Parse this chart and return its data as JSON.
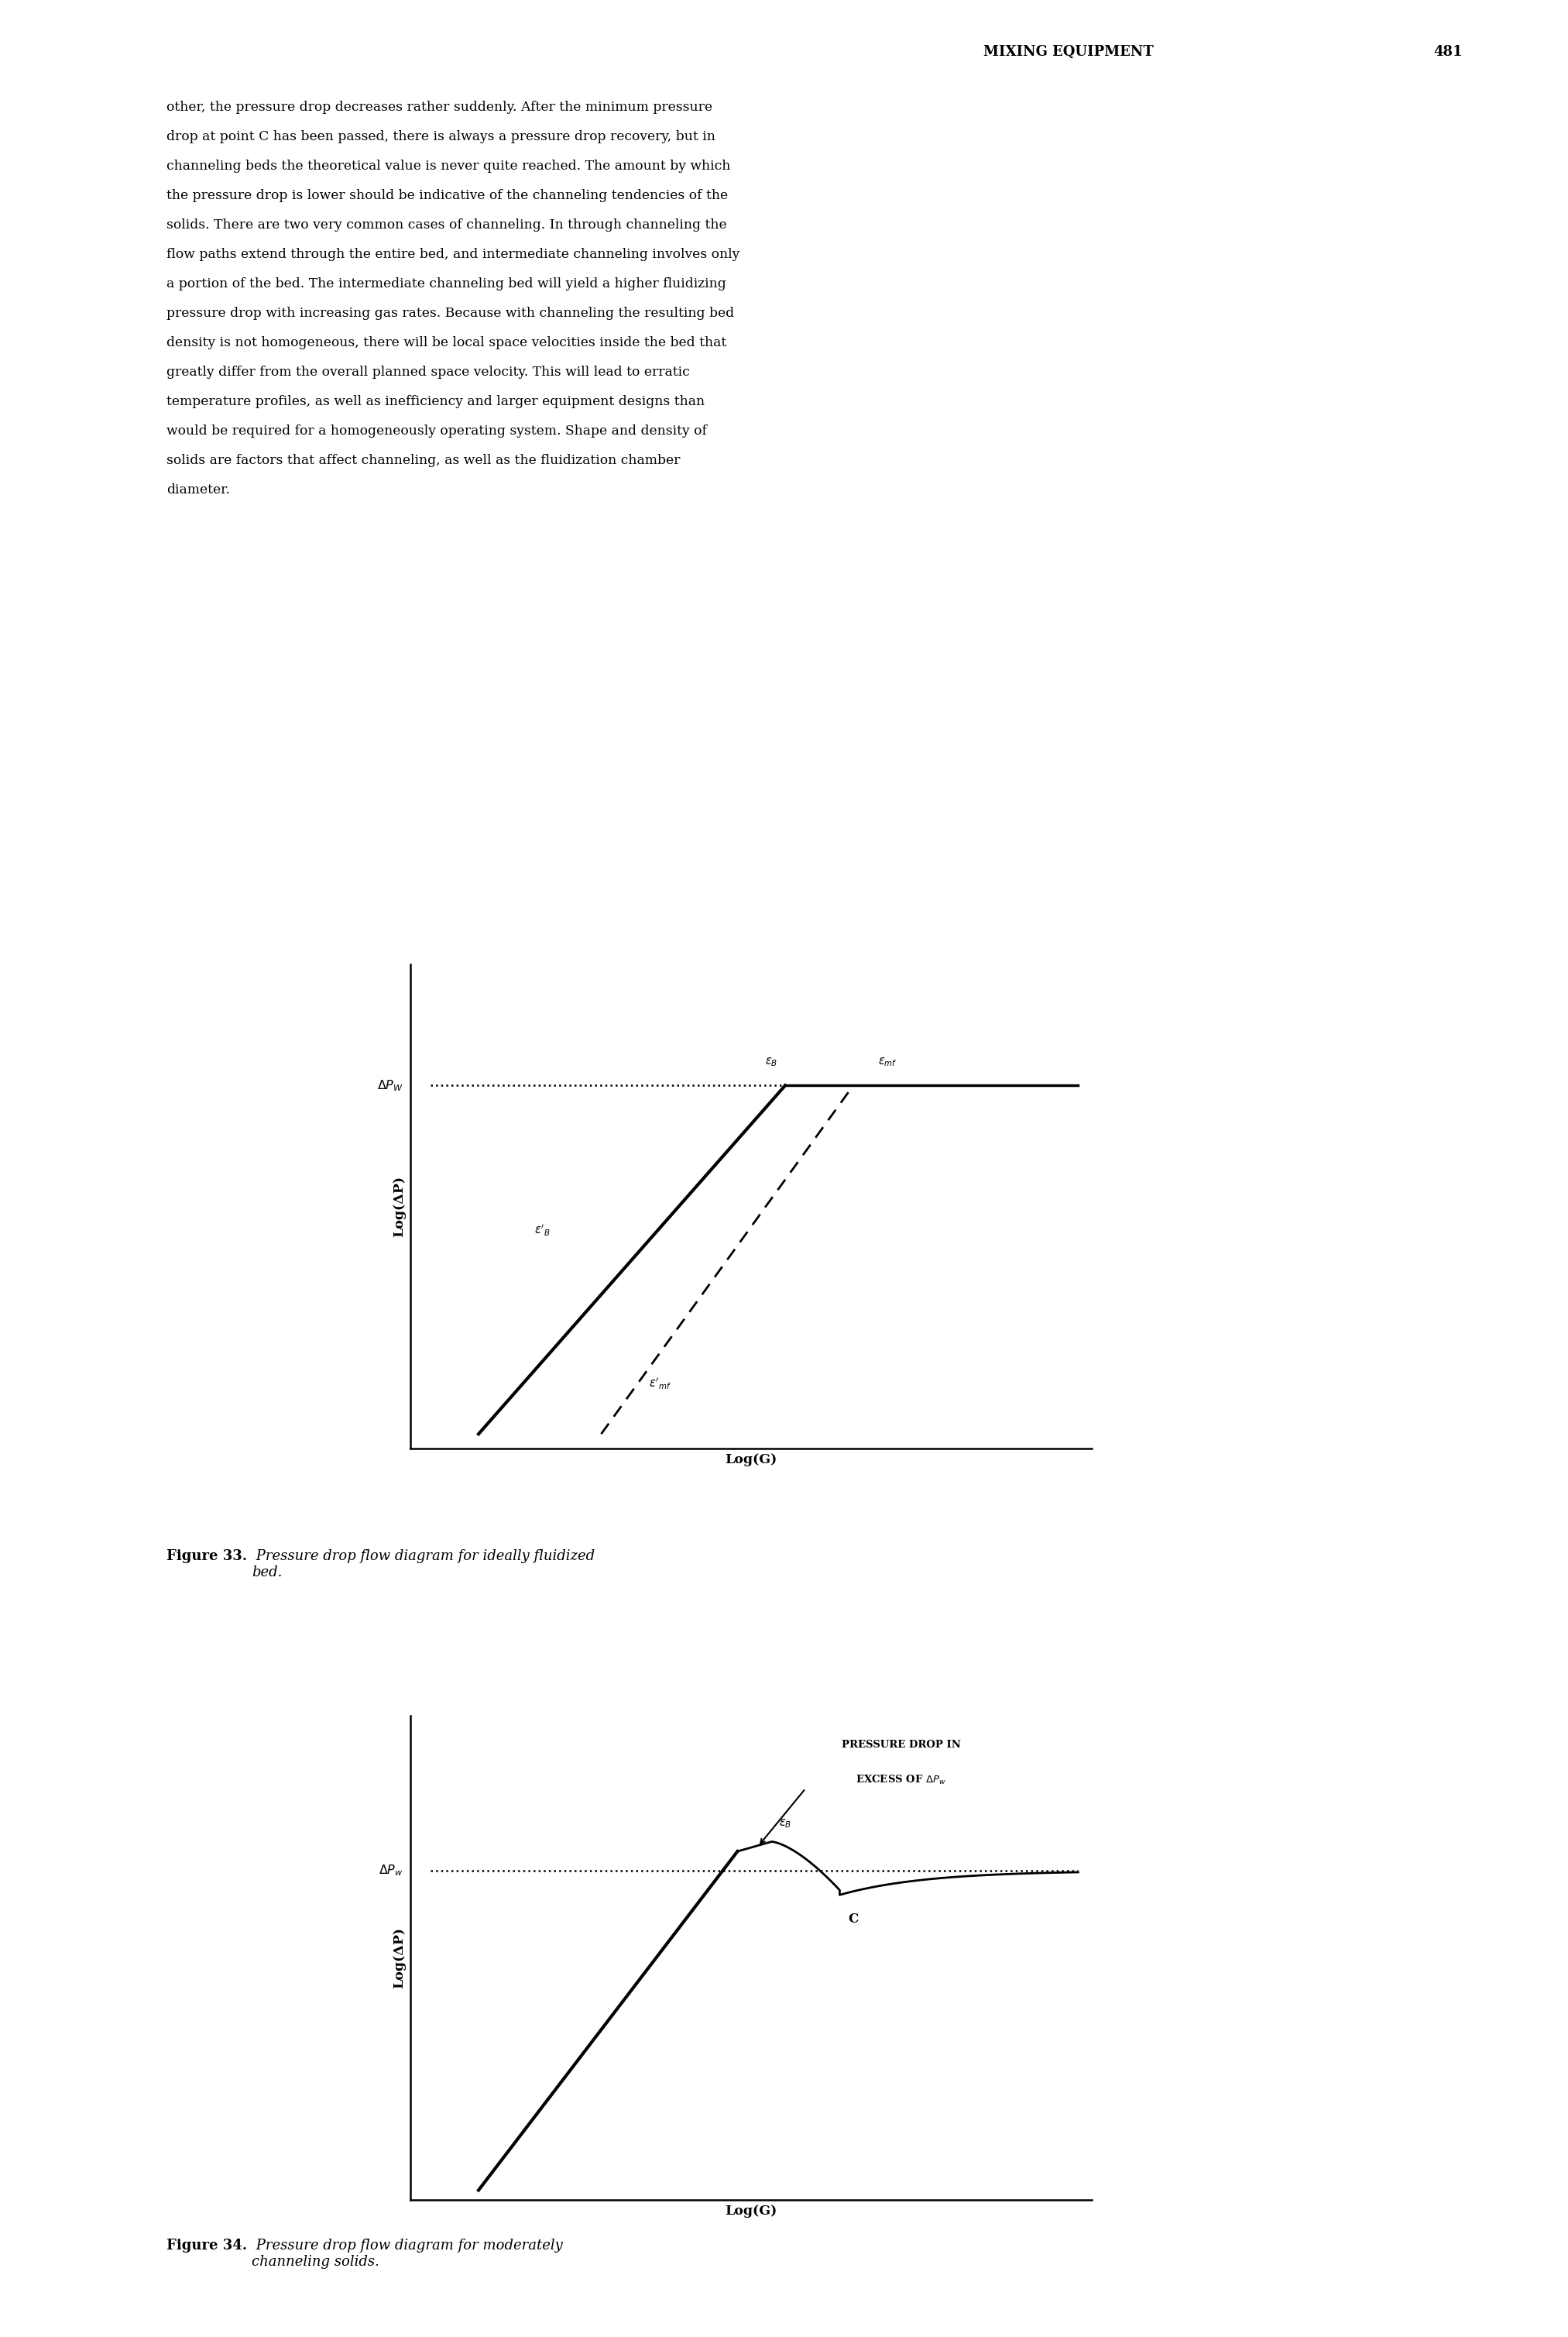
{
  "header_title": "MIXING EQUIPMENT",
  "header_page": "481",
  "body_text": [
    "other, the pressure drop decreases rather suddenly. After the minimum pressure",
    "drop at point C has been passed, there is always a pressure drop recovery, but in",
    "channeling beds the theoretical value is never quite reached. The amount by which",
    "the pressure drop is lower should be indicative of the channeling tendencies of the",
    "solids. There are two very common cases of channeling. In through channeling the",
    "flow paths extend through the entire bed, and intermediate channeling involves only",
    "a portion of the bed. The intermediate channeling bed will yield a higher fluidizing",
    "pressure drop with increasing gas rates. Because with channeling the resulting bed",
    "density is not homogeneous, there will be local space velocities inside the bed that",
    "greatly differ from the overall planned space velocity. This will lead to erratic",
    "temperature profiles, as well as inefficiency and larger equipment designs than",
    "would be required for a homogeneously operating system. Shape and density of",
    "solids are factors that affect channeling, as well as the fluidization chamber",
    "diameter."
  ],
  "fig33_ylabel": "Log(ΔP)",
  "fig33_xlabel": "Log(G)",
  "fig34_ylabel": "Log(ΔP)",
  "fig34_xlabel": "Log(G)",
  "fig33_caption_bold": "Figure 33.",
  "fig33_caption_italic": " Pressure drop flow diagram for ideally fluidized\nbed.",
  "fig34_caption_bold": "Figure 34.",
  "fig34_caption_italic": " Pressure drop flow diagram for moderately\nchanneling solids.",
  "background_color": "#ffffff",
  "text_color": "#000000"
}
